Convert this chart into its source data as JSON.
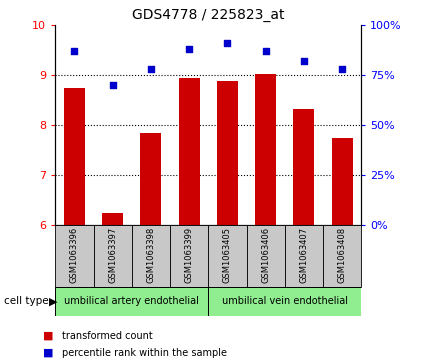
{
  "title": "GDS4778 / 225823_at",
  "samples": [
    "GSM1063396",
    "GSM1063397",
    "GSM1063398",
    "GSM1063399",
    "GSM1063405",
    "GSM1063406",
    "GSM1063407",
    "GSM1063408"
  ],
  "bar_values": [
    8.75,
    6.25,
    7.85,
    8.95,
    8.88,
    9.02,
    8.32,
    7.75
  ],
  "dot_values": [
    87,
    70,
    78,
    88,
    91,
    87,
    82,
    78
  ],
  "bar_color": "#cc0000",
  "dot_color": "#0000cc",
  "ylim_left": [
    6,
    10
  ],
  "ylim_right": [
    0,
    100
  ],
  "yticks_left": [
    6,
    7,
    8,
    9,
    10
  ],
  "yticks_right": [
    0,
    25,
    50,
    75,
    100
  ],
  "yticklabels_right": [
    "0%",
    "25%",
    "50%",
    "75%",
    "100%"
  ],
  "cell_type_labels": [
    "umbilical artery endothelial",
    "umbilical vein endothelial"
  ],
  "cell_type_groups": [
    4,
    4
  ],
  "cell_type_color": "#90ee90",
  "sample_box_color": "#c8c8c8",
  "legend_bar_label": "transformed count",
  "legend_dot_label": "percentile rank within the sample",
  "cell_type_header": "cell type"
}
